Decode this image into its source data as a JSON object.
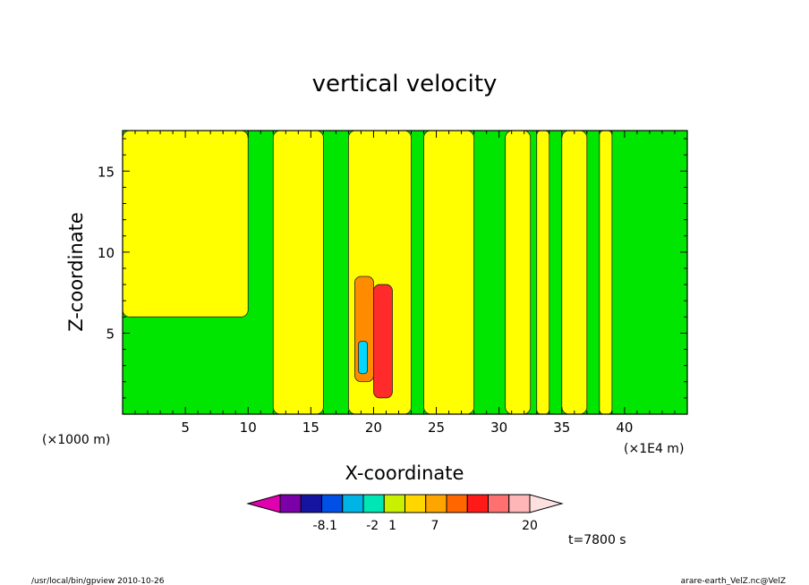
{
  "chart_data": {
    "type": "heatmap",
    "title": "vertical velocity",
    "xlabel": "X-coordinate",
    "ylabel": "Z-coordinate",
    "x_unit_left": "(×1000 m)",
    "x_unit_right": "(×1E4 m)",
    "xlim": [
      0,
      45
    ],
    "ylim": [
      0,
      17.5
    ],
    "x_ticks": [
      5,
      10,
      15,
      20,
      25,
      30,
      35,
      40
    ],
    "x_tick_labels": [
      "5",
      "10",
      "15",
      "20",
      "25",
      "30",
      "35",
      "40"
    ],
    "y_ticks": [
      5,
      10,
      15
    ],
    "y_tick_labels": [
      "5",
      "10",
      "15"
    ],
    "field_regions": [
      {
        "level": "yellow",
        "x": [
          0,
          10
        ],
        "y": [
          6,
          17.5
        ]
      },
      {
        "level": "yellow",
        "x": [
          12,
          16
        ],
        "y": [
          0,
          17.5
        ]
      },
      {
        "level": "yellow",
        "x": [
          18,
          23
        ],
        "y": [
          0,
          17.5
        ]
      },
      {
        "level": "yellow",
        "x": [
          24,
          28
        ],
        "y": [
          0,
          17.5
        ]
      },
      {
        "level": "yellow",
        "x": [
          30.5,
          32.5
        ],
        "y": [
          0,
          17.5
        ]
      },
      {
        "level": "yellow",
        "x": [
          33,
          34
        ],
        "y": [
          0,
          17.5
        ]
      },
      {
        "level": "yellow",
        "x": [
          35,
          37
        ],
        "y": [
          0,
          17.5
        ]
      },
      {
        "level": "yellow",
        "x": [
          38,
          39
        ],
        "y": [
          0,
          17.5
        ]
      },
      {
        "level": "orange",
        "x": [
          18.5,
          20
        ],
        "y": [
          2,
          8.5
        ]
      },
      {
        "level": "red",
        "x": [
          20,
          21.5
        ],
        "y": [
          1,
          8
        ]
      },
      {
        "level": "cyan",
        "x": [
          18.8,
          19.5
        ],
        "y": [
          2.5,
          4.5
        ]
      }
    ],
    "colorbar": {
      "colors": [
        "#e000b0",
        "#7b00a8",
        "#1414a0",
        "#0050e6",
        "#00b4e6",
        "#00e6b4",
        "#c8f000",
        "#ffd700",
        "#ffa500",
        "#ff6600",
        "#ff1a1a",
        "#ff7070",
        "#ffb6b6",
        "#ffe0e0"
      ],
      "labels": [
        "-8.1",
        "-2",
        "1",
        "7",
        "20"
      ]
    },
    "time_label": "t=7800 s"
  },
  "footer": {
    "left": "/usr/local/bin/gpview  2010-10-26",
    "right": "arare-earth_VelZ.nc@VelZ"
  }
}
